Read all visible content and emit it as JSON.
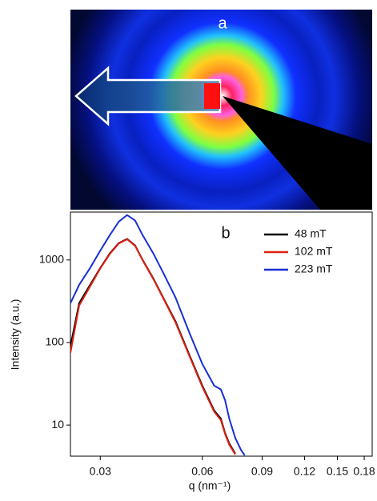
{
  "panel_a": {
    "label": "a"
  },
  "chart_data": {
    "type": "line",
    "panel_label": "b",
    "x_label": "q (nm⁻¹)",
    "y_label": "Intensity (a.u.)",
    "x": [
      0.0245,
      0.026,
      0.028,
      0.03,
      0.032,
      0.034,
      0.036,
      0.038,
      0.04,
      0.043,
      0.046,
      0.05,
      0.055,
      0.06,
      0.065,
      0.068,
      0.07,
      0.072,
      0.075,
      0.078,
      0.08
    ],
    "series": [
      {
        "name": "48 mT",
        "color": "#000000",
        "values": [
          90,
          300,
          500,
          800,
          1200,
          1600,
          1800,
          1500,
          1000,
          600,
          350,
          180,
          70,
          30,
          15,
          12,
          8,
          6,
          4.5,
          null,
          null
        ]
      },
      {
        "name": "102 mT",
        "color": "#e02010",
        "values": [
          75,
          280,
          480,
          790,
          1180,
          1580,
          1780,
          1480,
          990,
          590,
          345,
          175,
          68,
          29,
          14.5,
          11.5,
          7.8,
          5.8,
          4.4,
          null,
          null
        ]
      },
      {
        "name": "223 mT",
        "color": "#1a2fd6",
        "values": [
          300,
          500,
          800,
          1300,
          2000,
          2900,
          3500,
          3000,
          2000,
          1200,
          700,
          350,
          130,
          55,
          30,
          27,
          20,
          12,
          7,
          5,
          4.3
        ]
      }
    ],
    "xscale": "log",
    "yscale": "log",
    "xlim": [
      0.0245,
      0.19
    ],
    "xticks": [
      0.03,
      0.06,
      0.09,
      0.12,
      0.15,
      0.18
    ],
    "ylim": [
      4.2,
      3800
    ],
    "yticks": [
      10,
      100,
      1000
    ],
    "legend": "top-right"
  }
}
